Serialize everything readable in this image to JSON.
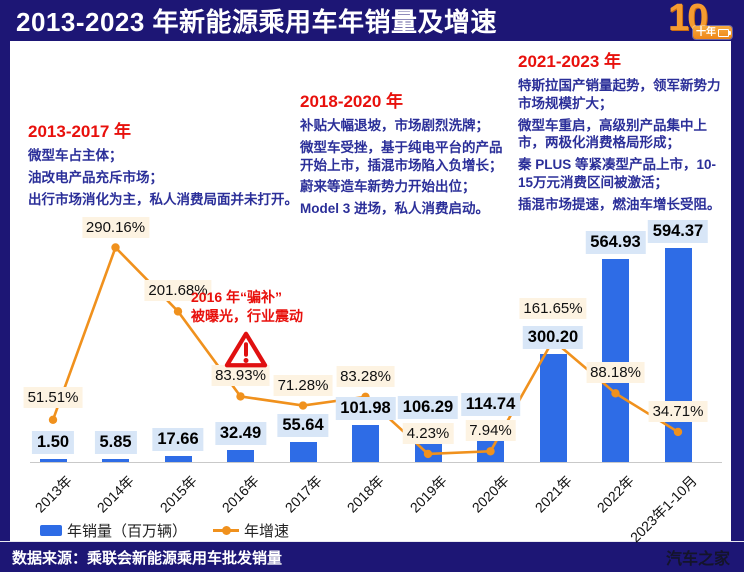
{
  "title": "2013-2023 年新能源乘用车年销量及增速",
  "logo": {
    "number": "10",
    "badge_text": "十年"
  },
  "notes": [
    {
      "heading": "2013-2017 年",
      "lines": [
        "微型车占主体；",
        "油改电产品充斥市场；",
        "出行市场消化为主，私人消费局面并未打开。"
      ]
    },
    {
      "heading": "2018-2020 年",
      "lines": [
        "补贴大幅退坡，市场剧烈洗牌；",
        "微型车受挫，基于纯电平台的产品开始上市，插混市场陷入负增长；",
        "蔚来等造车新势力开始出位；",
        "Model 3 进场，私人消费启动。"
      ]
    },
    {
      "heading": "2021-2023 年",
      "lines": [
        "特斯拉国产销量起势，领军新势力市场规模扩大；",
        "微型车重启，高级别产品集中上市，两极化消费格局形成；",
        "秦 PLUS 等紧凑型产品上市，10-15万元消费区间被激活；",
        "插混市场提速，燃油车增长受阻。"
      ]
    }
  ],
  "annotation": {
    "line1": "2016 年“骗补”",
    "line2": "被曝光，行业震动",
    "icon": "warning-triangle-icon"
  },
  "chart_data": {
    "type": "bar+line",
    "categories": [
      "2013年",
      "2014年",
      "2015年",
      "2016年",
      "2017年",
      "2018年",
      "2019年",
      "2020年",
      "2021年",
      "2022年",
      "2023年1-10月"
    ],
    "series": [
      {
        "name": "年销量（百万辆）",
        "type": "bar",
        "color": "#2e6ce6",
        "values": [
          1.5,
          5.85,
          17.66,
          32.49,
          55.64,
          101.98,
          106.29,
          114.74,
          300.2,
          564.93,
          594.37
        ]
      },
      {
        "name": "年增速",
        "type": "line",
        "color": "#f0911d",
        "unit": "%",
        "values": [
          51.51,
          290.16,
          201.68,
          83.93,
          71.28,
          83.28,
          4.23,
          7.94,
          161.65,
          88.18,
          34.71
        ]
      }
    ],
    "title": "2013-2023 年新能源乘用车年销量及增速",
    "xlabel": "",
    "ylabel": "",
    "grid": false,
    "legend_position": "bottom-left",
    "bar_value_unit": "百万辆",
    "line_value_unit": "%"
  },
  "footer": {
    "source": "数据来源：乘联会新能源乘用车批发销量",
    "watermark": "汽车之家"
  }
}
